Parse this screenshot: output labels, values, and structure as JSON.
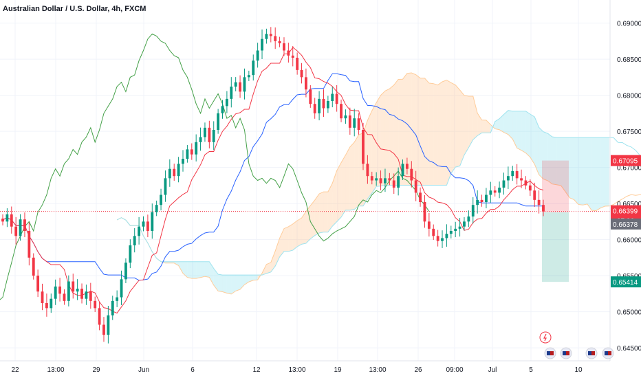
{
  "title": "Australian Dollar / U.S. Dollar, 4h, FXCM",
  "chart_data": {
    "type": "candlestick",
    "symbol": "AUDUSD",
    "interval": "4h",
    "source": "FXCM",
    "y_ticks": [
      "0.69000",
      "0.68500",
      "0.68000",
      "0.67500",
      "0.67000",
      "0.66500",
      "0.66000",
      "0.65500",
      "0.65000",
      "0.64500"
    ],
    "y_values": [
      0.69,
      0.685,
      0.68,
      0.675,
      0.67,
      0.665,
      0.66,
      0.655,
      0.65,
      0.645
    ],
    "ylim": [
      0.6432,
      0.6932
    ],
    "x_ticks": [
      "22",
      "13:00",
      "29",
      "Jun",
      "6",
      "12",
      "13:00",
      "19",
      "13:00",
      "26",
      "09:00",
      "Jul",
      "5",
      "10"
    ],
    "price_badges": [
      {
        "label": "0.67095",
        "value": 0.67095,
        "color": "#f23645"
      },
      {
        "label": "0.66399",
        "value": 0.66399,
        "color": "#f23645",
        "countdown": "37:36"
      },
      {
        "label": "0.66378",
        "value": 0.66378,
        "color": "#6a6d78"
      },
      {
        "label": "0.65414",
        "value": 0.65414,
        "color": "#089981"
      }
    ],
    "position_tool": {
      "entry": 0.66378,
      "stop": 0.67095,
      "target": 0.65414
    },
    "close_series": [
      0.6625,
      0.6635,
      0.6618,
      0.6605,
      0.6628,
      0.6612,
      0.6575,
      0.655,
      0.6528,
      0.6512,
      0.6505,
      0.6518,
      0.6535,
      0.6525,
      0.6515,
      0.6542,
      0.6528,
      0.6532,
      0.6518,
      0.6528,
      0.6515,
      0.6505,
      0.6482,
      0.6468,
      0.6495,
      0.6515,
      0.652,
      0.6545,
      0.6568,
      0.6592,
      0.6605,
      0.6618,
      0.6625,
      0.6612,
      0.6638,
      0.6648,
      0.6662,
      0.6685,
      0.6698,
      0.6688,
      0.6705,
      0.6712,
      0.6725,
      0.6718,
      0.6735,
      0.6742,
      0.6755,
      0.6735,
      0.6752,
      0.6775,
      0.6785,
      0.6795,
      0.6812,
      0.6818,
      0.6805,
      0.6825,
      0.6828,
      0.6848,
      0.6862,
      0.6878,
      0.6885,
      0.6882,
      0.6875,
      0.6872,
      0.6862,
      0.6855,
      0.6852,
      0.6835,
      0.6825,
      0.6808,
      0.6788,
      0.6775,
      0.6795,
      0.6782,
      0.6792,
      0.6802,
      0.6788,
      0.6768,
      0.6772,
      0.6755,
      0.6768,
      0.6752,
      0.6705,
      0.6688,
      0.6682,
      0.6685,
      0.6678,
      0.6685,
      0.6682,
      0.6672,
      0.6688,
      0.6705,
      0.6698,
      0.6682,
      0.6665,
      0.6652,
      0.6625,
      0.6615,
      0.6605,
      0.6598,
      0.6602,
      0.6608,
      0.6612,
      0.6615,
      0.6618,
      0.6625,
      0.6632,
      0.6648,
      0.6655,
      0.6652,
      0.6662,
      0.6668,
      0.6665,
      0.6672,
      0.6682,
      0.6688,
      0.6695,
      0.6685,
      0.6682,
      0.6675,
      0.6668,
      0.6655,
      0.6648,
      0.6639
    ]
  },
  "toolbar_icons": [
    "lightning-icon",
    "au-us-flag-icon",
    "us-flag-icon",
    "au-us-flag-icon",
    "au-us-flag-icon"
  ]
}
